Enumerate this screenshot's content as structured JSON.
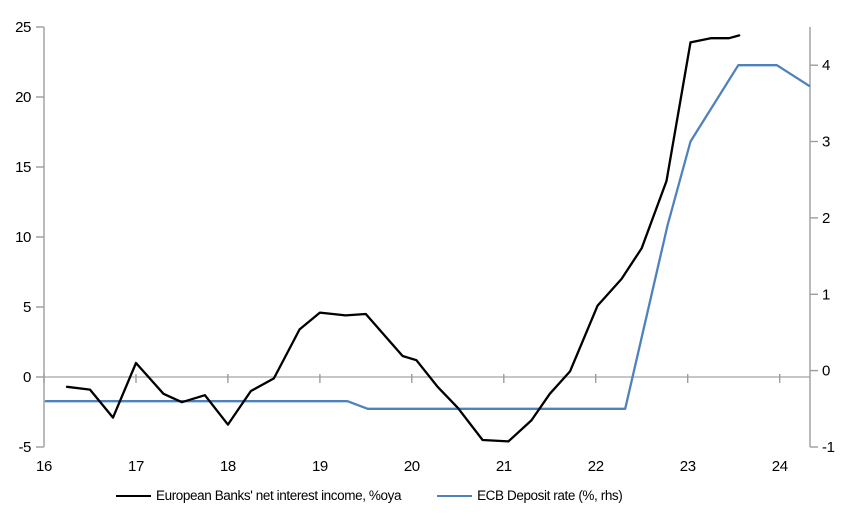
{
  "figure": {
    "background": "#ffffff",
    "colors": {
      "axis": "#9d9d9d",
      "zero_line": "#b3b3b3",
      "nii_line": "#000000",
      "deposit_line": "#4f81bd",
      "text": "#000000"
    }
  },
  "chart_data": {
    "type": "line",
    "title": "",
    "xlabel": "",
    "ylabel_left": "",
    "ylabel_right": "",
    "grid": false,
    "legend_position": "bottom",
    "x_axis": {
      "range": [
        16,
        24.33
      ],
      "ticks": [
        16,
        17,
        18,
        19,
        20,
        21,
        22,
        23,
        24
      ]
    },
    "y_left": {
      "range": [
        -5,
        25
      ],
      "ticks": [
        25,
        20,
        15,
        10,
        5,
        0,
        -5
      ]
    },
    "y_right": {
      "range": [
        -1,
        4.5
      ],
      "ticks": [
        4,
        3,
        2,
        1,
        0,
        -1
      ]
    },
    "zero_line_value": 0,
    "series": [
      {
        "name": "European Banks' net interest income, %oya",
        "axis": "left",
        "color": "#000000",
        "points": [
          [
            16.25,
            -0.7
          ],
          [
            16.5,
            -0.9
          ],
          [
            16.75,
            -2.9
          ],
          [
            17.0,
            1.0
          ],
          [
            17.3,
            -1.2
          ],
          [
            17.5,
            -1.8
          ],
          [
            17.75,
            -1.3
          ],
          [
            18.0,
            -3.4
          ],
          [
            18.25,
            -1.0
          ],
          [
            18.5,
            -0.1
          ],
          [
            18.78,
            3.4
          ],
          [
            19.0,
            4.6
          ],
          [
            19.28,
            4.4
          ],
          [
            19.5,
            4.5
          ],
          [
            19.9,
            1.5
          ],
          [
            20.05,
            1.2
          ],
          [
            20.28,
            -0.7
          ],
          [
            20.5,
            -2.2
          ],
          [
            20.77,
            -4.5
          ],
          [
            21.05,
            -4.6
          ],
          [
            21.3,
            -3.1
          ],
          [
            21.5,
            -1.2
          ],
          [
            21.72,
            0.4
          ],
          [
            22.02,
            5.1
          ],
          [
            22.28,
            7.0
          ],
          [
            22.5,
            9.2
          ],
          [
            22.77,
            14.0
          ],
          [
            23.03,
            23.9
          ],
          [
            23.25,
            24.2
          ],
          [
            23.45,
            24.2
          ],
          [
            23.56,
            24.4
          ]
        ]
      },
      {
        "name": "ECB Deposit rate (%, rhs)",
        "axis": "right",
        "color": "#4f81bd",
        "points": [
          [
            16.02,
            -0.4
          ],
          [
            19.3,
            -0.4
          ],
          [
            19.52,
            -0.5
          ],
          [
            22.32,
            -0.5
          ],
          [
            22.78,
            1.9
          ],
          [
            23.03,
            3.0
          ],
          [
            23.55,
            4.0
          ],
          [
            23.97,
            4.0
          ],
          [
            24.32,
            3.73
          ]
        ]
      }
    ]
  }
}
